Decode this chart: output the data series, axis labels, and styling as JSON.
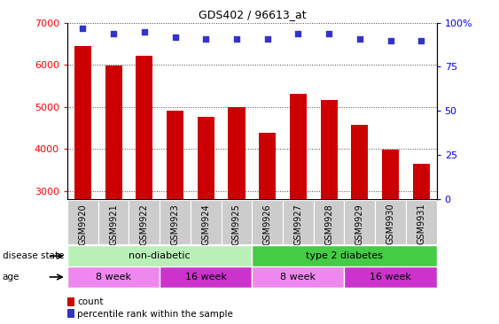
{
  "title": "GDS402 / 96613_at",
  "samples": [
    "GSM9920",
    "GSM9921",
    "GSM9922",
    "GSM9923",
    "GSM9924",
    "GSM9925",
    "GSM9926",
    "GSM9927",
    "GSM9928",
    "GSM9929",
    "GSM9930",
    "GSM9931"
  ],
  "counts": [
    6450,
    5980,
    6220,
    4900,
    4770,
    4990,
    4390,
    5300,
    5150,
    4570,
    3980,
    3640
  ],
  "percentile_ranks": [
    97,
    94,
    95,
    92,
    91,
    91,
    91,
    94,
    94,
    91,
    90,
    90
  ],
  "ylim_left": [
    2800,
    7000
  ],
  "ylim_right": [
    0,
    100
  ],
  "yticks_left": [
    3000,
    4000,
    5000,
    6000,
    7000
  ],
  "yticks_right": [
    0,
    25,
    50,
    75,
    100
  ],
  "ytick_right_labels": [
    "0",
    "25",
    "50",
    "75",
    "100%"
  ],
  "bar_color": "#cc0000",
  "scatter_color": "#3333cc",
  "grid_color": "#444444",
  "bar_bottom": 2800,
  "disease_state_groups": [
    {
      "label": "non-diabetic",
      "start": 0,
      "end": 6,
      "color": "#b8f0b8"
    },
    {
      "label": "type 2 diabetes",
      "start": 6,
      "end": 12,
      "color": "#44cc44"
    }
  ],
  "age_groups": [
    {
      "label": "8 week",
      "start": 0,
      "end": 3,
      "color": "#ee88ee"
    },
    {
      "label": "16 week",
      "start": 3,
      "end": 6,
      "color": "#cc33cc"
    },
    {
      "label": "8 week",
      "start": 6,
      "end": 9,
      "color": "#ee88ee"
    },
    {
      "label": "16 week",
      "start": 9,
      "end": 12,
      "color": "#cc33cc"
    }
  ],
  "bar_width": 0.55,
  "background_color": "#ffffff",
  "xtick_bg_color": "#cccccc"
}
